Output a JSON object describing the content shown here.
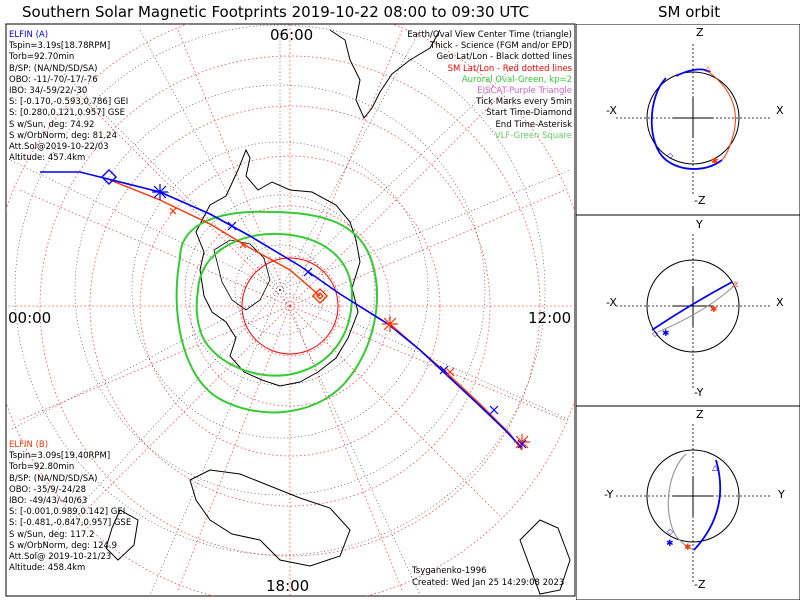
{
  "title": "Southern Solar Magnetic Footprints 2019-10-22 08:00 to 09:30 UTC",
  "orbit_title": "SM orbit",
  "map": {
    "mlt_top": "06:00",
    "mlt_left": "00:00",
    "mlt_right": "12:00",
    "mlt_bottom": "18:00"
  },
  "legend": [
    {
      "text": "Earth/Oval View Center Time (triangle)",
      "color": "#000000"
    },
    {
      "text": "Thick - Science (FGM and/or EPD)",
      "color": "#000000"
    },
    {
      "text": "Geo Lat/Lon - Black dotted lines",
      "color": "#000000"
    },
    {
      "text": "SM Lat/Lon - Red dotted lines",
      "color": "#ff0000"
    },
    {
      "text": "Auroral Oval-Green, kp=2",
      "color": "#33cc33"
    },
    {
      "text": "EISCAT-Purple Triangle",
      "color": "#cc66cc"
    },
    {
      "text": "Tick Marks every 5min",
      "color": "#000000"
    },
    {
      "text": "Start Time-Diamond",
      "color": "#000000"
    },
    {
      "text": "End Time-Asterisk",
      "color": "#000000"
    },
    {
      "text": "VLF-Green Square",
      "color": "#66cc66"
    }
  ],
  "elfin_a": {
    "title": "ELFIN (A)",
    "color": "#0000ff",
    "lines": [
      "Tspin=3.19s[18.78RPM]",
      "Torb=92.70min",
      "B/SP: (NA/ND/SD/SA)",
      "OBO: -11/-70/-17/-76",
      "IBO: 34/-59/22/-30",
      "S: [-0.170,-0.593,0.786] GEI",
      "S: [0.280,0.121,0.957] GSE",
      "S w/Sun, deg: 74.92",
      "S w/OrbNorm, deg: 81.24",
      "Att.Sol@2019-10-22/03",
      "Altitude: 457.4km"
    ]
  },
  "elfin_b": {
    "title": "ELFIN (B)",
    "color": "#ff3300",
    "lines": [
      "Tspin=3.09s[19.40RPM]",
      "Torb=92.80min",
      "B/SP: (NA/ND/SD/SA)",
      "OBO: -35/9/-24/28",
      "IBO: -49/43/-40/63",
      "S: [-0.001,0.989,0.142] GEI",
      "S: [-0.481,-0.847,0.957] GSE",
      "S w/Sun, deg: 117.2",
      "S w/OrbNorm, deg: 124.9",
      "Att.Sol@ 2019-10-21/23",
      "Altitude: 458.4km"
    ]
  },
  "credit": "Tsyganenko-1996",
  "created": "Created: Wed Jan 25 14:29:08 2023",
  "orbit_panels": [
    {
      "top": "Z",
      "bottom": "-Z",
      "left": "-X",
      "right": "X"
    },
    {
      "top": "Y",
      "bottom": "-Y",
      "left": "-X",
      "right": "X"
    },
    {
      "top": "Z",
      "bottom": "-Z",
      "left": "-Y",
      "right": "Y"
    }
  ]
}
